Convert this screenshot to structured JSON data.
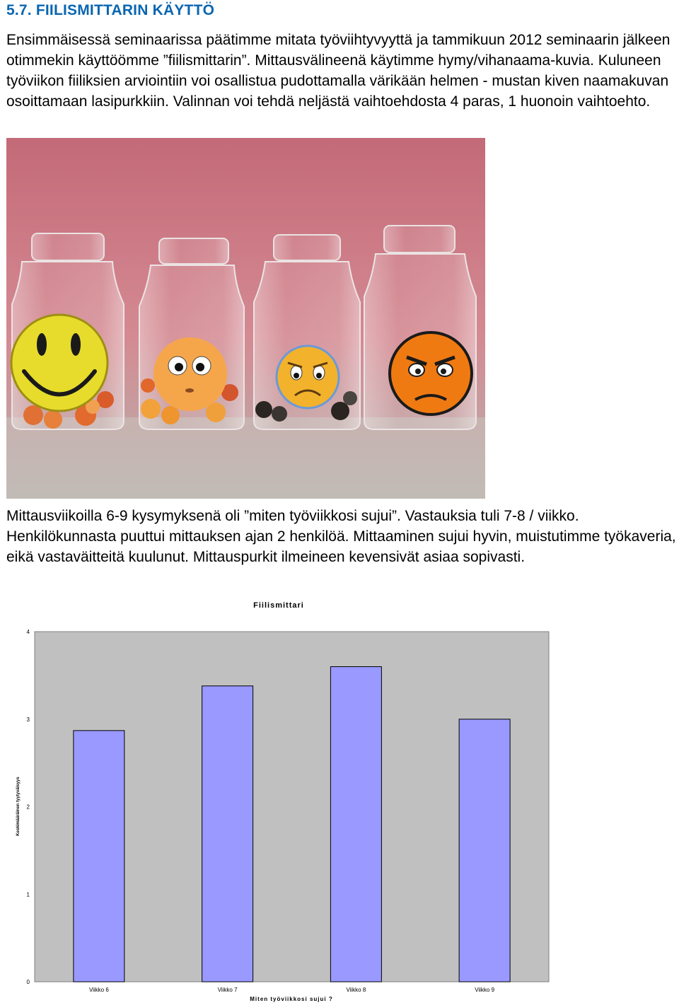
{
  "heading": "5.7. FIILISMITTARIN KÄYTTÖ",
  "paragraph1": "Ensimmäisessä seminaarissa päätimme mitata työviihtyvyyttä ja tammikuun 2012 seminaarin jälkeen otimmekin käyttöömme ”fiilismittarin”. Mittausvälineenä käytimme hymy/vihanaama-kuvia. Kuluneen työviikon fiiliksien arviointiin voi osallistua pudottamalla värikään helmen - mustan kiven naamakuvan osoittamaan lasipurkkiin. Valinnan voi tehdä neljästä vaihtoehdosta 4 paras, 1 huonoin vaihtoehto.",
  "paragraph2": "Mittausviikoilla 6-9 kysymyksenä oli ”miten työviikkosi sujui”. Vastauksia tuli 7-8 / viikko. Henkilökunnasta puuttui mittauksen ajan 2 henkilöä. Mittaaminen sujui hyvin, muistutimme työkaveria, eikä vastaväitteitä kuulunut. Mittauspurkit ilmeineen kevensivät asiaa sopivasti.",
  "photo": {
    "jars": [
      {
        "face": "smiley-face-icon",
        "bead_color": "#e8732e"
      },
      {
        "face": "wide-eyed-face-icon",
        "bead_color": "#f0a03a"
      },
      {
        "face": "sad-face-icon",
        "bead_color": "#2a2622"
      },
      {
        "face": "angry-face-icon",
        "bead_color": "#1a1a1a"
      }
    ],
    "background_color": "#c87480"
  },
  "chart_data": {
    "type": "bar",
    "title": "Fiilismittari",
    "xlabel": "Miten työviikkosi sujui ?",
    "ylabel": "Keskimääräinen tyytyväisyys",
    "categories": [
      "Viikko 6",
      "Viikko 7",
      "Viikko 8",
      "Viikko 9"
    ],
    "values": [
      2.87,
      3.38,
      3.6,
      3.0
    ],
    "ylim": [
      0,
      4
    ],
    "yticks": [
      "0",
      "1",
      "2",
      "3",
      "4"
    ],
    "bar_color": "#9999ff",
    "plot_background": "#c0c0c0",
    "grid": false
  }
}
